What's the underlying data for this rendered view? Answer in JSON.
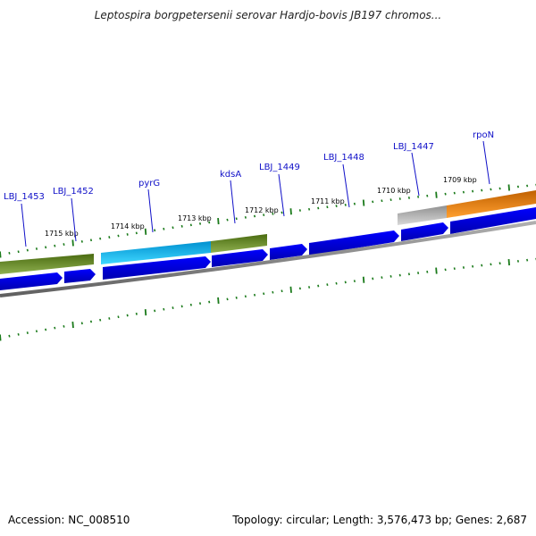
{
  "header": {
    "title": "Leptospira borgpetersenii serovar Hardjo-bovis JB197 chromos..."
  },
  "footer": {
    "accession": "Accession: NC_008510",
    "topology": "Topology: circular; Length: 3,576,473 bp; Genes: 2,687"
  },
  "genes": [
    {
      "name": "LBJ_1453",
      "color": "#0000ee"
    },
    {
      "name": "LBJ_1452",
      "color": "#0000ee"
    },
    {
      "name": "pyrG",
      "color": "#0000ee"
    },
    {
      "name": "kdsA",
      "color": "#0000ee"
    },
    {
      "name": "LBJ_1449",
      "color": "#0000ee"
    },
    {
      "name": "LBJ_1448",
      "color": "#0000ee"
    },
    {
      "name": "LBJ_1447",
      "color": "#0000ee"
    },
    {
      "name": "rpoN",
      "color": "#0000ee"
    }
  ],
  "kbp_ticks": [
    "1715 kbp",
    "1714 kbp",
    "1713 kbp",
    "1712 kbp",
    "1711 kbp",
    "1710 kbp",
    "1709 kbp"
  ],
  "cog_colors": {
    "olive": "#6b8e23",
    "cyan": "#00bfff",
    "gray": "#b4b4b4",
    "orange": "#ff8c00",
    "backbone": "#808080",
    "tick": "#1a7a1a"
  }
}
